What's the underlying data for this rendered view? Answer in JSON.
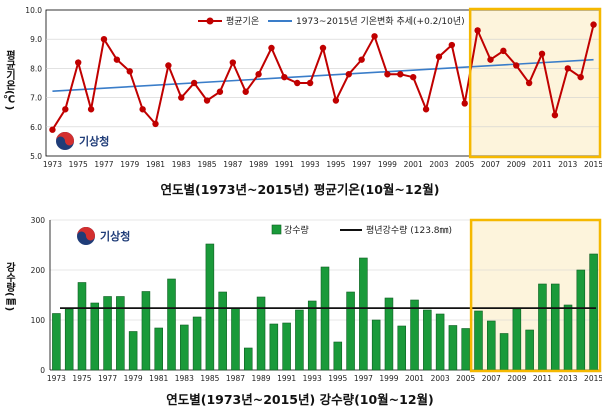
{
  "chart_data": [
    {
      "type": "line",
      "title": "연도별(1973년~2015년)  평균기온(10월~12월)",
      "ylabel": "평균기온(℃)",
      "ylim": [
        5.0,
        10.0
      ],
      "yticks": [
        "5.0",
        "6.0",
        "7.0",
        "8.0",
        "9.0",
        "10.0"
      ],
      "x": [
        1973,
        1974,
        1975,
        1976,
        1977,
        1978,
        1979,
        1980,
        1981,
        1982,
        1983,
        1984,
        1985,
        1986,
        1987,
        1988,
        1989,
        1990,
        1991,
        1992,
        1993,
        1994,
        1995,
        1996,
        1997,
        1998,
        1999,
        2000,
        2001,
        2002,
        2003,
        2004,
        2005,
        2006,
        2007,
        2008,
        2009,
        2010,
        2011,
        2012,
        2013,
        2014,
        2015
      ],
      "xtick_labels": [
        "1973",
        "1975",
        "1977",
        "1979",
        "1981",
        "1983",
        "1985",
        "1987",
        "1989",
        "1991",
        "1993",
        "1995",
        "1997",
        "1999",
        "2001",
        "2003",
        "2005",
        "2007",
        "2009",
        "2011",
        "2013",
        "2015"
      ],
      "series": [
        {
          "name": "평균기온",
          "color": "#c00000",
          "values": [
            5.9,
            6.6,
            8.2,
            6.6,
            9.0,
            8.3,
            7.9,
            6.6,
            6.1,
            8.1,
            7.0,
            7.5,
            6.9,
            7.2,
            8.2,
            7.2,
            7.8,
            8.7,
            7.7,
            7.5,
            7.5,
            8.7,
            6.9,
            7.8,
            8.3,
            9.1,
            7.8,
            7.8,
            7.7,
            6.6,
            8.4,
            8.8,
            6.8,
            9.3,
            8.3,
            8.6,
            8.1,
            7.5,
            8.5,
            6.4,
            8.0,
            7.7,
            9.5
          ]
        },
        {
          "name": "1973~2015년 기온변화 추세(+0.2/10년)",
          "color": "#3a7dc9",
          "trend": [
            7.22,
            8.3
          ]
        }
      ],
      "highlight_range": [
        2006,
        2015
      ],
      "highlight_color": "#f5b800",
      "logo": "기상청"
    },
    {
      "type": "bar",
      "title": "연도별(1973년~2015년)  강수량(10월~12월)",
      "ylabel": "강수량(㎜)",
      "ylim": [
        0,
        300
      ],
      "yticks": [
        "0",
        "100",
        "200",
        "300"
      ],
      "x": [
        1973,
        1974,
        1975,
        1976,
        1977,
        1978,
        1979,
        1980,
        1981,
        1982,
        1983,
        1984,
        1985,
        1986,
        1987,
        1988,
        1989,
        1990,
        1991,
        1992,
        1993,
        1994,
        1995,
        1996,
        1997,
        1998,
        1999,
        2000,
        2001,
        2002,
        2003,
        2004,
        2005,
        2006,
        2007,
        2008,
        2009,
        2010,
        2011,
        2012,
        2013,
        2014,
        2015
      ],
      "xtick_labels": [
        "1973",
        "1975",
        "1977",
        "1979",
        "1981",
        "1983",
        "1985",
        "1987",
        "1989",
        "1991",
        "1993",
        "1995",
        "1997",
        "1999",
        "2001",
        "2003",
        "2005",
        "2007",
        "2009",
        "2011",
        "2013",
        "2015"
      ],
      "series": [
        {
          "name": "강수량",
          "color": "#1a9a3a",
          "values": [
            113,
            122,
            175,
            134,
            147,
            147,
            77,
            157,
            84,
            182,
            90,
            106,
            252,
            156,
            123,
            44,
            146,
            92,
            94,
            120,
            138,
            206,
            56,
            156,
            224,
            100,
            144,
            88,
            140,
            120,
            112,
            89,
            83,
            118,
            98,
            73,
            122,
            80,
            172,
            172,
            130,
            200,
            232
          ]
        },
        {
          "name": "평년강수량 (123.8㎜)",
          "color": "#111111",
          "constant": 123.8
        }
      ],
      "highlight_range": [
        2006,
        2015
      ],
      "highlight_color": "#f5b800",
      "logo": "기상청"
    }
  ]
}
